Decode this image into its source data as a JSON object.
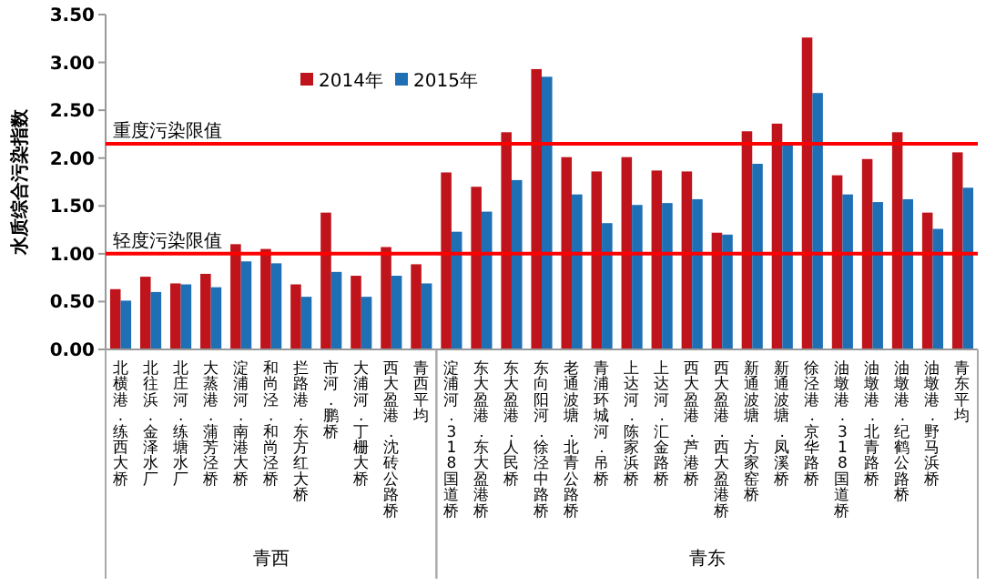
{
  "chart_data": {
    "type": "bar",
    "ylabel": "水质综合污染指数",
    "categories": [
      "北横港.练西大桥",
      "北往浜.金泽水厂",
      "北庄河.练塘水厂",
      "大蒸港.蒲芳泾桥",
      "淀浦河.南港大桥",
      "和尚泾.和尚泾桥",
      "拦路港.东方红大桥",
      "市河.鹏桥",
      "大浦河.丁栅大桥",
      "西大盈港.沈砖公路桥",
      "青西平均",
      "淀浦河.318国道桥",
      "东大盈港.东大盈港桥",
      "东大盈港.人民桥",
      "东向阳河.徐泾中路桥",
      "老通波塘.北青公路桥",
      "青浦环城河.吊桥",
      "上达河.陈家浜桥",
      "上达河.汇金路桥",
      "西大盈港.芦港桥",
      "西大盈港.西大盈港桥",
      "新通波塘.方家窑桥",
      "新通波塘.凤溪桥",
      "徐泾港.京华路桥",
      "油墩港.318国道桥",
      "油墩港.北青路桥",
      "油墩港.纪鹤公路桥",
      "油墩港.野马浜桥",
      "青东平均"
    ],
    "series": [
      {
        "name": "2014年",
        "color": "#c0141c",
        "values": [
          0.63,
          0.76,
          0.69,
          0.79,
          1.1,
          1.05,
          0.68,
          1.43,
          0.77,
          1.07,
          0.89,
          1.85,
          1.7,
          2.27,
          2.93,
          2.01,
          1.86,
          2.01,
          1.87,
          1.86,
          1.22,
          2.28,
          2.36,
          3.26,
          1.82,
          1.99,
          2.27,
          1.43,
          2.06
        ]
      },
      {
        "name": "2015年",
        "color": "#1f6fb5",
        "values": [
          0.51,
          0.6,
          0.68,
          0.65,
          0.92,
          0.9,
          0.55,
          0.81,
          0.55,
          0.77,
          0.69,
          1.23,
          1.44,
          1.77,
          2.85,
          1.62,
          1.32,
          1.51,
          1.53,
          1.57,
          1.2,
          1.94,
          2.14,
          2.68,
          1.62,
          1.54,
          1.57,
          1.26,
          1.69
        ]
      }
    ],
    "ylim": [
      0,
      3.5
    ],
    "yticks": [
      {
        "value": 0,
        "label": "0.00"
      },
      {
        "value": 0.5,
        "label": "0.50"
      },
      {
        "value": 1,
        "label": "1.00"
      },
      {
        "value": 1.5,
        "label": "1.50"
      },
      {
        "value": 2,
        "label": "2.00"
      },
      {
        "value": 2.5,
        "label": "2.50"
      },
      {
        "value": 3,
        "label": "3.00"
      },
      {
        "value": 3.5,
        "label": "3.50"
      }
    ],
    "grid": false,
    "legend": "top",
    "ref_lines": [
      {
        "axis": "y",
        "value": 2.15,
        "label": "重度污染限值",
        "color": "#ff0000"
      },
      {
        "axis": "y",
        "value": 1.0,
        "label": "轻度污染限值",
        "color": "#ff0000"
      }
    ],
    "annotations": [
      "青西",
      "青东"
    ]
  }
}
